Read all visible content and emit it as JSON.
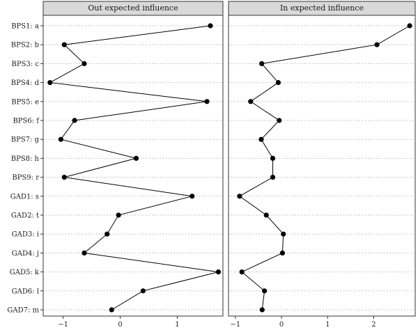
{
  "chart_data": [
    {
      "type": "line",
      "title": "Out expected influence",
      "categories": [
        "BPS1: a",
        "BPS2: b",
        "BPS3: c",
        "BPS4: d",
        "BPS5: e",
        "BPS6: f",
        "BPS7: g",
        "BPS8: h",
        "BPS9: r",
        "GAD1: s",
        "GAD2: t",
        "GAD3: i",
        "GAD4: j",
        "GAD5: k",
        "GAD6: l",
        "GAD7: m"
      ],
      "values": [
        1.58,
        -0.98,
        -0.63,
        -1.23,
        1.52,
        -0.8,
        -1.04,
        0.28,
        -0.98,
        1.26,
        -0.03,
        -0.23,
        -0.63,
        1.72,
        0.4,
        -0.15
      ],
      "xticks": [
        -1,
        0,
        1
      ],
      "xlim": [
        -1.35,
        1.8
      ],
      "xlabel": "",
      "ylabel": "",
      "grid": "dotted horizontal"
    },
    {
      "type": "line",
      "title": "In expected influence",
      "categories": [
        "BPS1: a",
        "BPS2: b",
        "BPS3: c",
        "BPS4: d",
        "BPS5: e",
        "BPS6: f",
        "BPS7: g",
        "BPS8: h",
        "BPS9: r",
        "GAD1: s",
        "GAD2: t",
        "GAD3: i",
        "GAD4: j",
        "GAD5: k",
        "GAD6: l",
        "GAD7: m"
      ],
      "values": [
        2.78,
        2.07,
        -0.43,
        -0.07,
        -0.67,
        -0.05,
        -0.44,
        -0.19,
        -0.19,
        -0.91,
        -0.33,
        0.04,
        0.02,
        -0.86,
        -0.37,
        -0.42
      ],
      "xticks": [
        -1,
        0,
        1,
        2
      ],
      "xlim": [
        -1.15,
        2.9
      ],
      "xlabel": "",
      "ylabel": "",
      "grid": "dotted horizontal"
    }
  ],
  "style": {
    "strip_fill": "#d9d9d9",
    "panel_border": "#333333",
    "line_color": "#000000",
    "point_color": "#000000",
    "grid_color": "#9a9a9a"
  }
}
